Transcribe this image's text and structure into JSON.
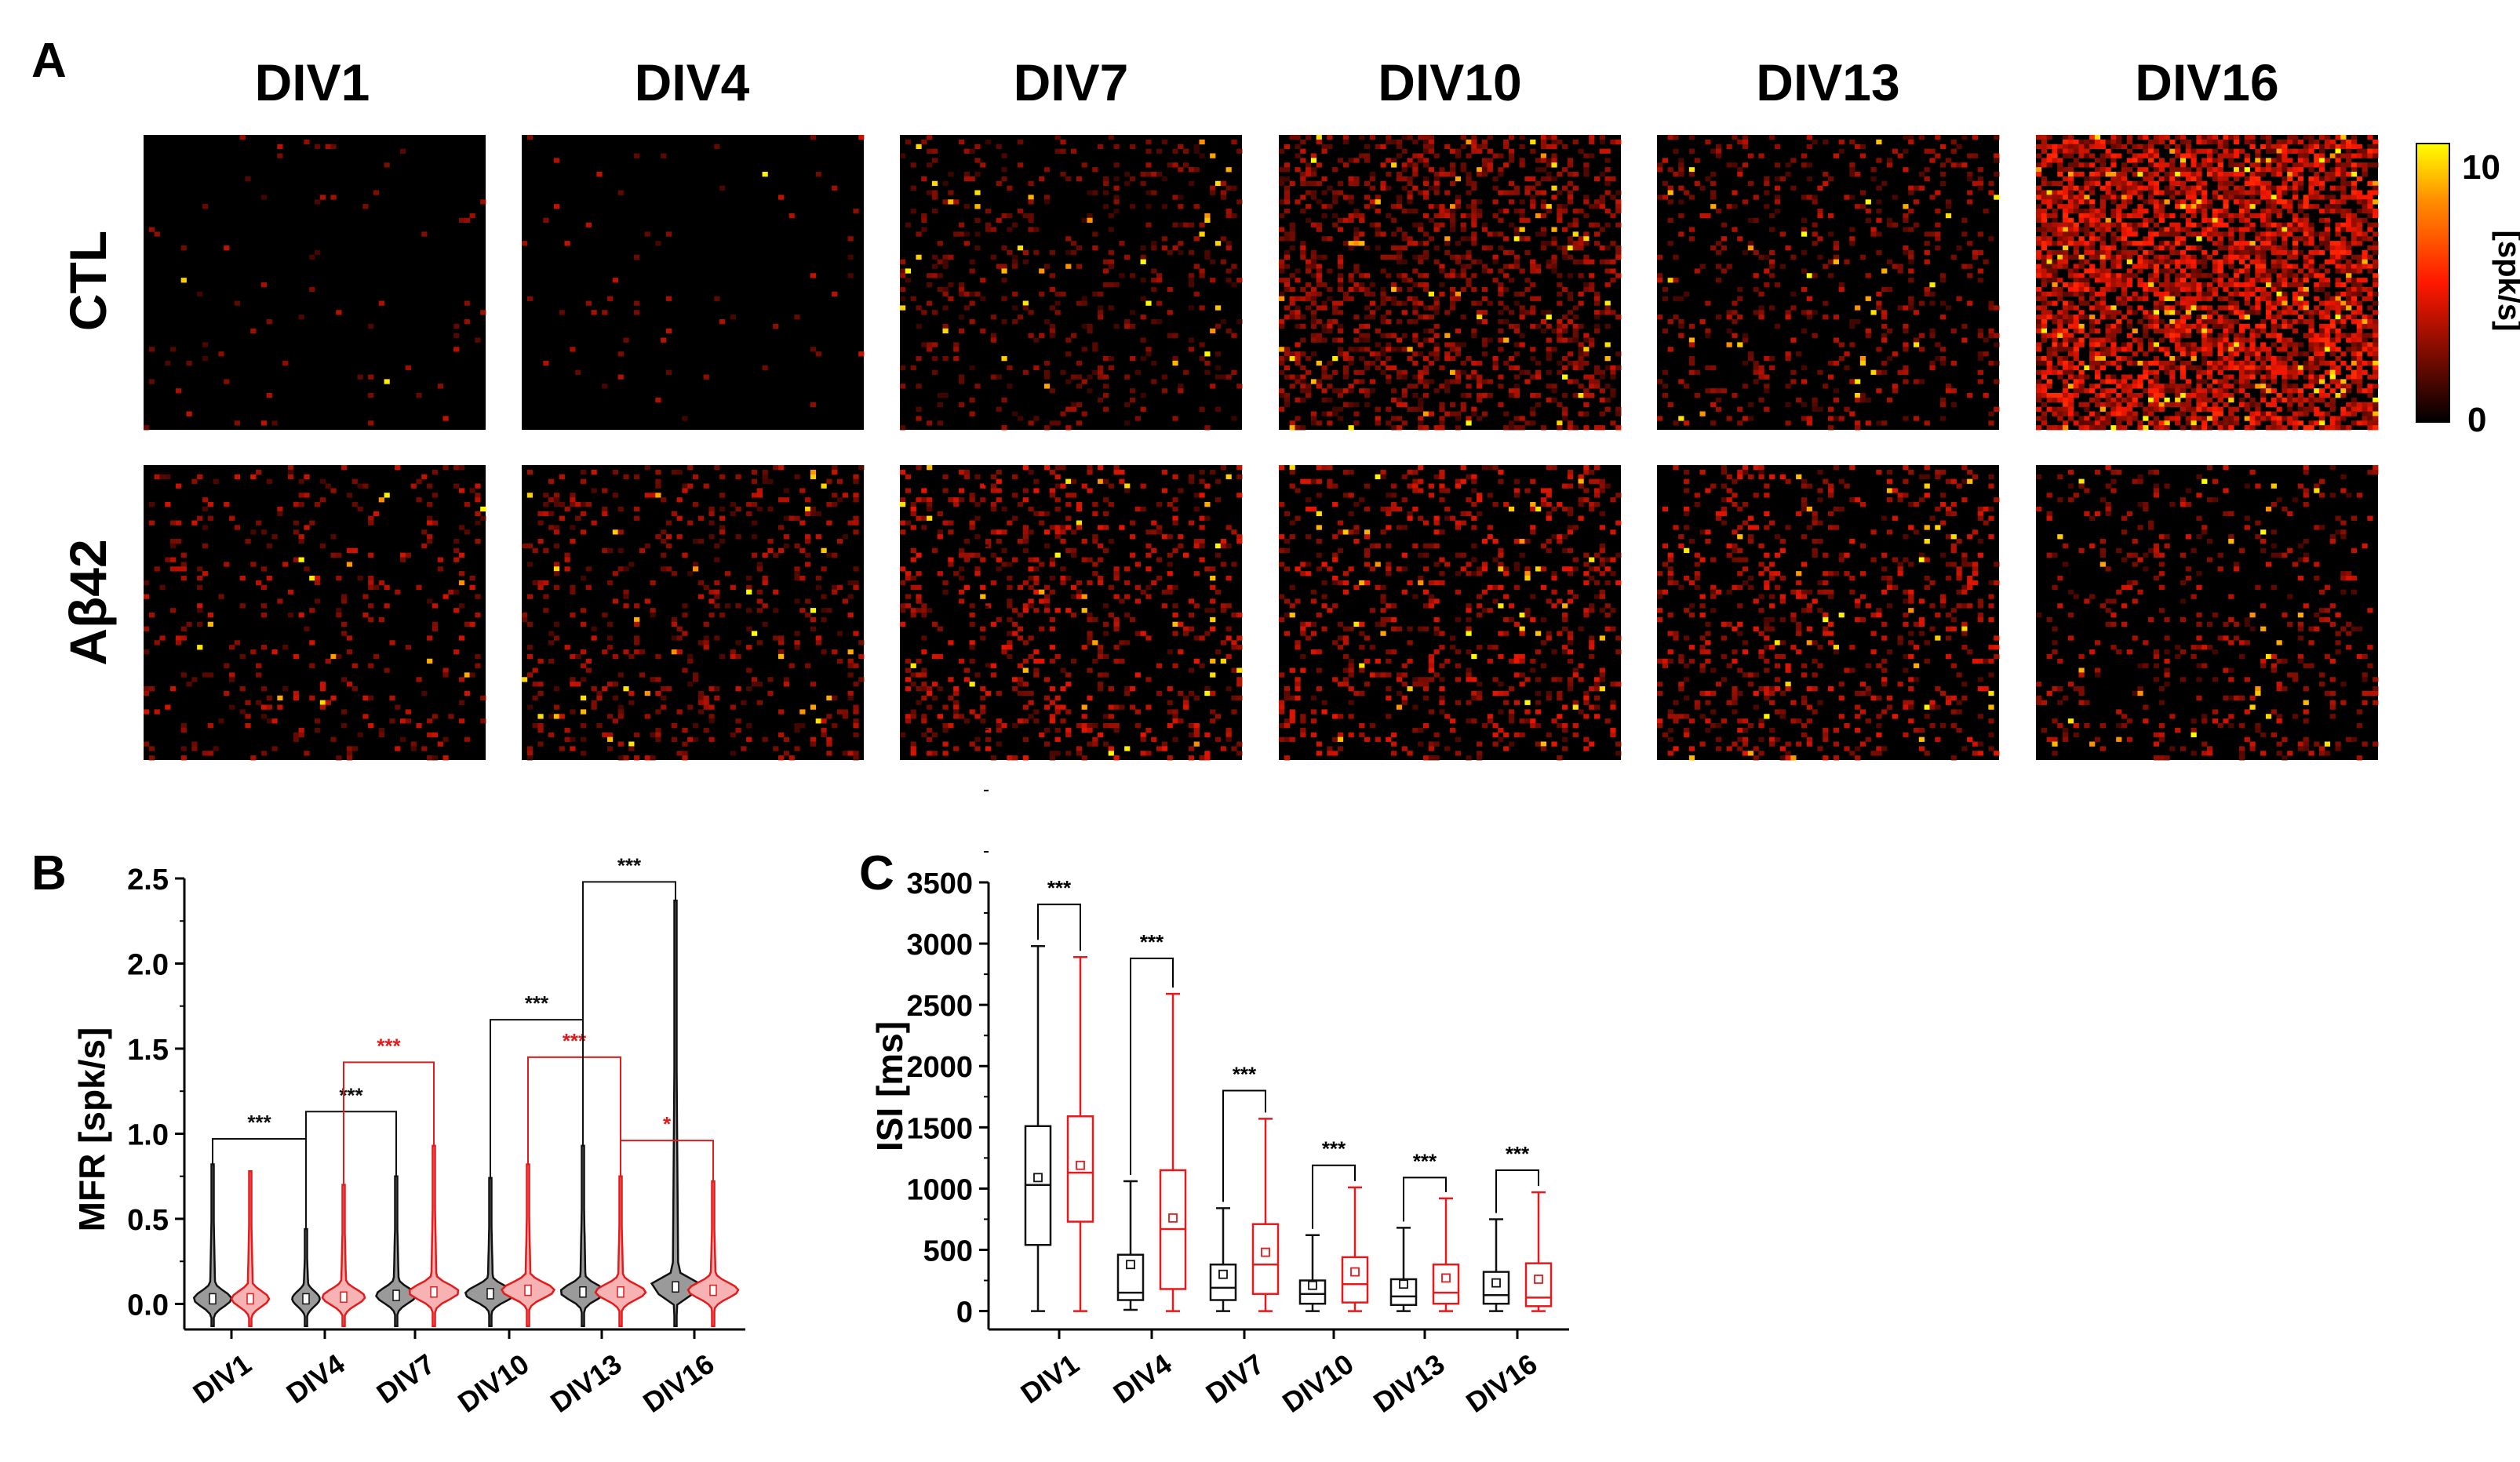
{
  "panel_labels": {
    "a": "A",
    "b": "B",
    "c": "C"
  },
  "colors": {
    "ctl": "#111111",
    "abeta": "#e41a1c",
    "ctl_fill": "#9a9a9a",
    "abeta_fill": "#f7b3b3",
    "map_low": "#000000",
    "map_mid": "#ff1800",
    "map_high": "#ffff00"
  },
  "chart_data": [
    {
      "type": "heatmap",
      "panel": "A",
      "columns": [
        "DIV1",
        "DIV4",
        "DIV7",
        "DIV10",
        "DIV13",
        "DIV16"
      ],
      "rows": [
        "CTL",
        "Aβ42"
      ],
      "colorbar": {
        "label": "[spk/s]",
        "min_label": "0",
        "max_label": "10",
        "range": [
          0,
          10
        ]
      },
      "grid_cells": 64,
      "activity": {
        "CTL": {
          "density": [
            0.015,
            0.015,
            0.12,
            0.3,
            0.14,
            0.65
          ],
          "level": [
            0.3,
            0.3,
            0.25,
            0.3,
            0.3,
            0.42
          ]
        },
        "Aβ42": {
          "density": [
            0.09,
            0.13,
            0.17,
            0.18,
            0.17,
            0.12
          ],
          "level": [
            0.32,
            0.3,
            0.35,
            0.35,
            0.35,
            0.32
          ]
        }
      }
    },
    {
      "type": "violin",
      "panel": "B",
      "ylabel": "MFR [spk/s]",
      "ylim": [
        -0.15,
        2.5
      ],
      "yticks": [
        "0.0",
        "0.5",
        "1.0",
        "1.5",
        "2.0",
        "2.5"
      ],
      "categories": [
        "DIV1",
        "DIV4",
        "DIV7",
        "DIV10",
        "DIV13",
        "DIV16"
      ],
      "series": [
        {
          "group": "CTL",
          "violins": [
            {
              "cat": 0,
              "max": 0.82,
              "median": 0.03,
              "width": 0.3
            },
            {
              "cat": 1,
              "max": 0.44,
              "median": 0.03,
              "width": 0.22
            },
            {
              "cat": 2,
              "max": 0.75,
              "median": 0.05,
              "width": 0.32
            },
            {
              "cat": 3,
              "max": 0.74,
              "median": 0.06,
              "width": 0.4
            },
            {
              "cat": 4,
              "max": 0.93,
              "median": 0.07,
              "width": 0.36
            },
            {
              "cat": 5,
              "max": 2.37,
              "median": 0.1,
              "width": 0.42
            }
          ]
        },
        {
          "group": "Aβ42",
          "violins": [
            {
              "cat": 0,
              "max": 0.78,
              "median": 0.03,
              "width": 0.3
            },
            {
              "cat": 1,
              "max": 0.7,
              "median": 0.04,
              "width": 0.34
            },
            {
              "cat": 2,
              "max": 0.93,
              "median": 0.07,
              "width": 0.4
            },
            {
              "cat": 3,
              "max": 0.82,
              "median": 0.08,
              "width": 0.42
            },
            {
              "cat": 4,
              "max": 0.75,
              "median": 0.07,
              "width": 0.4
            },
            {
              "cat": 5,
              "max": 0.72,
              "median": 0.08,
              "width": 0.4
            }
          ]
        }
      ],
      "annotations": [
        {
          "text": "***",
          "color": "ctl",
          "from": [
            0,
            0
          ],
          "to": [
            1,
            0
          ],
          "y": 0.97
        },
        {
          "text": "***",
          "color": "ctl",
          "from": [
            1,
            0
          ],
          "to": [
            2,
            0
          ],
          "y": 1.13
        },
        {
          "text": "***",
          "color": "abeta",
          "from": [
            1,
            1
          ],
          "to": [
            2,
            1
          ],
          "y": 1.42
        },
        {
          "text": "***",
          "color": "ctl",
          "from": [
            3,
            0
          ],
          "to": [
            4,
            0
          ],
          "y": 1.67
        },
        {
          "text": "***",
          "color": "abeta",
          "from": [
            3,
            1
          ],
          "to": [
            4,
            1
          ],
          "y": 1.45
        },
        {
          "text": "***",
          "color": "ctl",
          "from": [
            4,
            0
          ],
          "to": [
            5,
            0
          ],
          "y": 2.48
        },
        {
          "text": "*",
          "color": "abeta",
          "from": [
            4,
            1
          ],
          "to": [
            5,
            1
          ],
          "y": 0.96
        }
      ]
    },
    {
      "type": "box",
      "panel": "C",
      "ylabel": "ISI [ms]",
      "ylim": [
        -150,
        3500
      ],
      "yticks": [
        "0",
        "500",
        "1000",
        "1500",
        "2000",
        "2500",
        "3000",
        "3500"
      ],
      "categories": [
        "DIV1",
        "DIV4",
        "DIV7",
        "DIV10",
        "DIV13",
        "DIV16"
      ],
      "series": [
        {
          "group": "CTL",
          "boxes": [
            {
              "min": 0,
              "q1": 540,
              "median": 1030,
              "q3": 1510,
              "max": 2980,
              "mean": 1090
            },
            {
              "min": 10,
              "q1": 90,
              "median": 150,
              "q3": 460,
              "max": 1060,
              "mean": 380
            },
            {
              "min": 0,
              "q1": 90,
              "median": 190,
              "q3": 380,
              "max": 840,
              "mean": 300
            },
            {
              "min": 0,
              "q1": 60,
              "median": 140,
              "q3": 250,
              "max": 620,
              "mean": 210
            },
            {
              "min": 0,
              "q1": 50,
              "median": 120,
              "q3": 260,
              "max": 680,
              "mean": 220
            },
            {
              "min": 0,
              "q1": 60,
              "median": 130,
              "q3": 320,
              "max": 750,
              "mean": 230
            }
          ]
        },
        {
          "group": "Aβ42",
          "boxes": [
            {
              "min": 0,
              "q1": 730,
              "median": 1130,
              "q3": 1590,
              "max": 2890,
              "mean": 1190
            },
            {
              "min": 0,
              "q1": 180,
              "median": 670,
              "q3": 1150,
              "max": 2590,
              "mean": 760
            },
            {
              "min": 0,
              "q1": 140,
              "median": 380,
              "q3": 710,
              "max": 1570,
              "mean": 480
            },
            {
              "min": 0,
              "q1": 70,
              "median": 220,
              "q3": 440,
              "max": 1010,
              "mean": 320
            },
            {
              "min": 0,
              "q1": 60,
              "median": 150,
              "q3": 380,
              "max": 920,
              "mean": 270
            },
            {
              "min": 0,
              "q1": 40,
              "median": 110,
              "q3": 390,
              "max": 970,
              "mean": 260
            }
          ]
        }
      ],
      "annotations": [
        {
          "text": "***",
          "cat": 0,
          "y": 3320
        },
        {
          "text": "***",
          "cat": 1,
          "y": 2880
        },
        {
          "text": "***",
          "cat": 2,
          "y": 1800
        },
        {
          "text": "***",
          "cat": 3,
          "y": 1190
        },
        {
          "text": "***",
          "cat": 4,
          "y": 1090
        },
        {
          "text": "***",
          "cat": 5,
          "y": 1150
        }
      ]
    }
  ]
}
